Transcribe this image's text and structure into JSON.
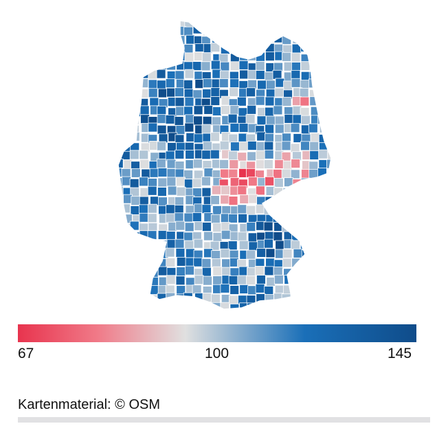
{
  "map": {
    "type": "choropleth",
    "region": "Germany (districts)",
    "colors": {
      "low": "#e8344e",
      "mid_low": "#f07a88",
      "mid": "#e0e0e0",
      "mid_high": "#1a6fb8",
      "high": "#0f4c8a"
    }
  },
  "legend": {
    "min": 67,
    "mid": 100,
    "max": 145,
    "min_label": "67",
    "mid_label": "100",
    "max_label": "145"
  },
  "credit": "Kartenmaterial: © OSM"
}
